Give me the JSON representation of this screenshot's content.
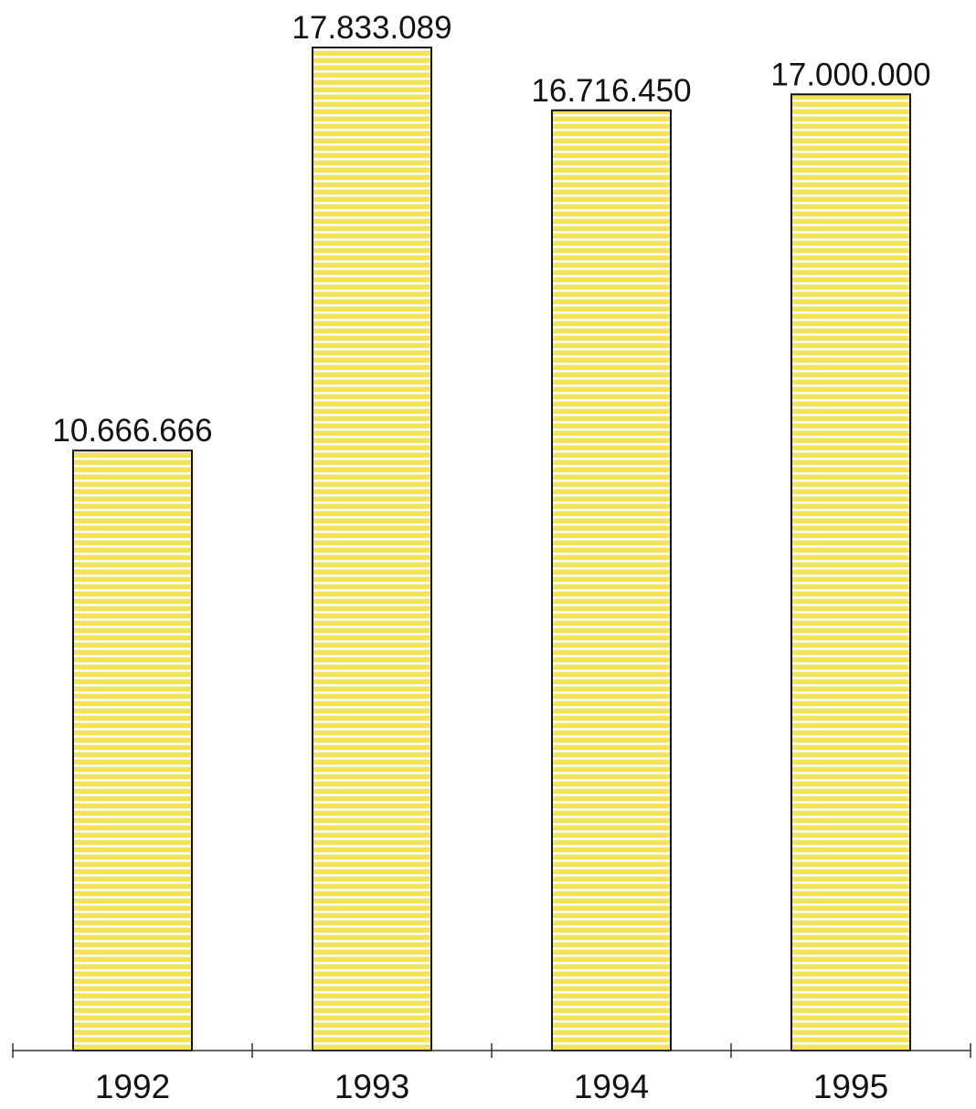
{
  "chart_data": {
    "type": "bar",
    "title": "",
    "xlabel": "",
    "ylabel": "",
    "categories": [
      "1992",
      "1993",
      "1994",
      "1995"
    ],
    "values": [
      10666666,
      17833089,
      16716450,
      17000000
    ],
    "value_labels": [
      "10.666.666",
      "17.833.089",
      "16.716.450",
      "17.000.000"
    ],
    "ylim": [
      0,
      18000000
    ],
    "grid": false,
    "legend": "none",
    "bar_fill_color": "#F6E35A",
    "bar_stripe_color": "#FFFFFF",
    "bar_outline_color": "#111111",
    "axis_color": "#333333"
  }
}
